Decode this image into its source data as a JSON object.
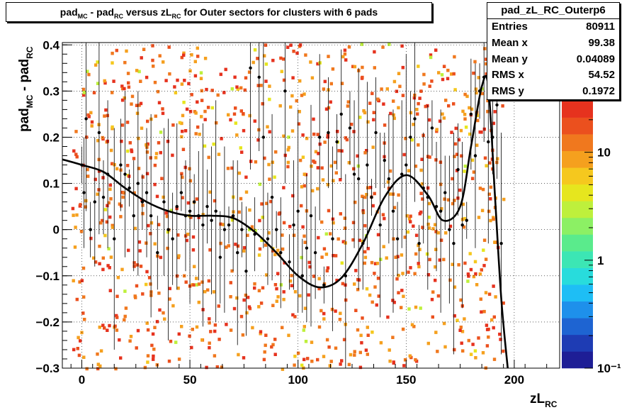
{
  "title": {
    "parts": [
      "pad",
      "MC",
      " - pad",
      "RC",
      " versus zL",
      "RC",
      " for Outer sectors for clusters with 6 pads"
    ]
  },
  "stats": {
    "name": "pad_zL_RC_Outerp6",
    "rows": [
      {
        "label": "Entries",
        "value": "80911"
      },
      {
        "label": "Mean x",
        "value": "99.38"
      },
      {
        "label": "Mean y",
        "value": "0.04089"
      },
      {
        "label": "RMS x",
        "value": "54.52"
      },
      {
        "label": "RMS y",
        "value": "0.1972"
      }
    ]
  },
  "chart_data": {
    "type": "heatmap",
    "xlabel": {
      "main": "zL",
      "sub": "RC"
    },
    "ylabel": {
      "main1": "pad",
      "sub1": "MC",
      "main2": " - pad",
      "sub2": "RC"
    },
    "xlim": [
      -9,
      221
    ],
    "ylim": [
      -0.3,
      0.405
    ],
    "x_ticks": [
      0,
      50,
      100,
      150,
      200
    ],
    "x_tick_labels": [
      "0",
      "50",
      "100",
      "150",
      "200"
    ],
    "y_ticks": [
      -0.3,
      -0.2,
      -0.1,
      0,
      0.1,
      0.2,
      0.3,
      0.4
    ],
    "y_tick_labels": [
      "−0.3",
      "−0.2",
      "−0.1",
      "0",
      "0.1",
      "0.2",
      "0.3",
      "0.4"
    ],
    "grid": true,
    "zscale": "log",
    "zlim": [
      0.1,
      30
    ],
    "z_ticks": [
      0.1,
      1,
      10
    ],
    "z_tick_labels": [
      "10⁻¹",
      "1",
      "10"
    ],
    "palette": [
      "#1e1e96",
      "#1e3cb4",
      "#1e64d2",
      "#1e90eb",
      "#1ebef5",
      "#28dcdc",
      "#3ce6b4",
      "#5aeb8c",
      "#8cf064",
      "#bef03c",
      "#e6e61e",
      "#f5c81e",
      "#f5a01e",
      "#f0781e",
      "#eb501e",
      "#e6321e"
    ],
    "fit_curve": {
      "x": [
        -9,
        0,
        10,
        20,
        30,
        40,
        50,
        60,
        70,
        80,
        90,
        100,
        110,
        120,
        130,
        140,
        150,
        160,
        167,
        175,
        180,
        185,
        188,
        191,
        194,
        197
      ],
      "y": [
        0.152,
        0.14,
        0.125,
        0.09,
        0.06,
        0.04,
        0.03,
        0.03,
        0.025,
        -0.005,
        -0.05,
        -0.1,
        -0.125,
        -0.105,
        -0.03,
        0.07,
        0.118,
        0.075,
        0.02,
        0.05,
        0.18,
        0.31,
        0.31,
        0.08,
        -0.15,
        -0.3
      ]
    },
    "profile_points": [
      [
        0,
        0.14
      ],
      [
        1,
        0.08
      ],
      [
        2,
        0.24
      ],
      [
        4,
        0.0
      ],
      [
        6,
        0.06
      ],
      [
        8,
        0.21
      ],
      [
        10,
        0.07
      ],
      [
        12,
        0.12
      ],
      [
        15,
        -0.02
      ],
      [
        18,
        0.14
      ],
      [
        20,
        0.12
      ],
      [
        22,
        0.09
      ],
      [
        24,
        0.03
      ],
      [
        26,
        0.1
      ],
      [
        28,
        0.06
      ],
      [
        30,
        0.08
      ],
      [
        32,
        0.03
      ],
      [
        35,
        -0.05
      ],
      [
        38,
        0.06
      ],
      [
        40,
        0.0
      ],
      [
        42,
        -0.02
      ],
      [
        44,
        0.05
      ],
      [
        46,
        0.08
      ],
      [
        48,
        0.03
      ],
      [
        50,
        0.04
      ],
      [
        52,
        0.06
      ],
      [
        54,
        0.03
      ],
      [
        56,
        0.01
      ],
      [
        58,
        0.05
      ],
      [
        60,
        0.02
      ],
      [
        62,
        0.04
      ],
      [
        64,
        -0.06
      ],
      [
        66,
        0.0
      ],
      [
        68,
        0.01
      ],
      [
        70,
        0.03
      ],
      [
        72,
        -0.05
      ],
      [
        74,
        0.0
      ],
      [
        76,
        -0.09
      ],
      [
        78,
        0.35
      ],
      [
        80,
        -0.01
      ],
      [
        82,
        0.33
      ],
      [
        84,
        0.2
      ],
      [
        86,
        -0.02
      ],
      [
        88,
        0.07
      ],
      [
        90,
        0.0
      ],
      [
        92,
        -0.05
      ],
      [
        94,
        0.3
      ],
      [
        96,
        -0.07
      ],
      [
        98,
        0.01
      ],
      [
        100,
        0.04
      ],
      [
        102,
        -0.1
      ],
      [
        104,
        -0.04
      ],
      [
        106,
        0.03
      ],
      [
        108,
        -0.05
      ],
      [
        110,
        0.2
      ],
      [
        112,
        -0.12
      ],
      [
        114,
        0.21
      ],
      [
        116,
        -0.02
      ],
      [
        118,
        0.19
      ],
      [
        120,
        0.25
      ],
      [
        122,
        -0.1
      ],
      [
        124,
        0.22
      ],
      [
        126,
        0.12
      ],
      [
        128,
        0.11
      ],
      [
        130,
        -0.03
      ],
      [
        132,
        0.14
      ],
      [
        134,
        0.07
      ],
      [
        136,
        0.21
      ],
      [
        138,
        0.01
      ],
      [
        140,
        0.15
      ],
      [
        142,
        0.11
      ],
      [
        144,
        0.04
      ],
      [
        146,
        -0.02
      ],
      [
        148,
        0.12
      ],
      [
        150,
        0.14
      ],
      [
        152,
        0.2
      ],
      [
        154,
        0.24
      ],
      [
        156,
        -0.03
      ],
      [
        158,
        0.09
      ],
      [
        160,
        0.07
      ],
      [
        162,
        0.22
      ],
      [
        164,
        0.05
      ],
      [
        166,
        0.04
      ],
      [
        168,
        0.08
      ],
      [
        170,
        0.0
      ],
      [
        172,
        -0.03
      ],
      [
        174,
        0.13
      ],
      [
        176,
        0.01
      ],
      [
        178,
        0.02
      ],
      [
        180,
        0.25
      ],
      [
        182,
        0.16
      ],
      [
        184,
        0.3
      ],
      [
        186,
        0.33
      ],
      [
        188,
        0.19
      ],
      [
        190,
        0.2
      ],
      [
        192,
        0.27
      ],
      [
        194,
        -0.03
      ]
    ]
  }
}
